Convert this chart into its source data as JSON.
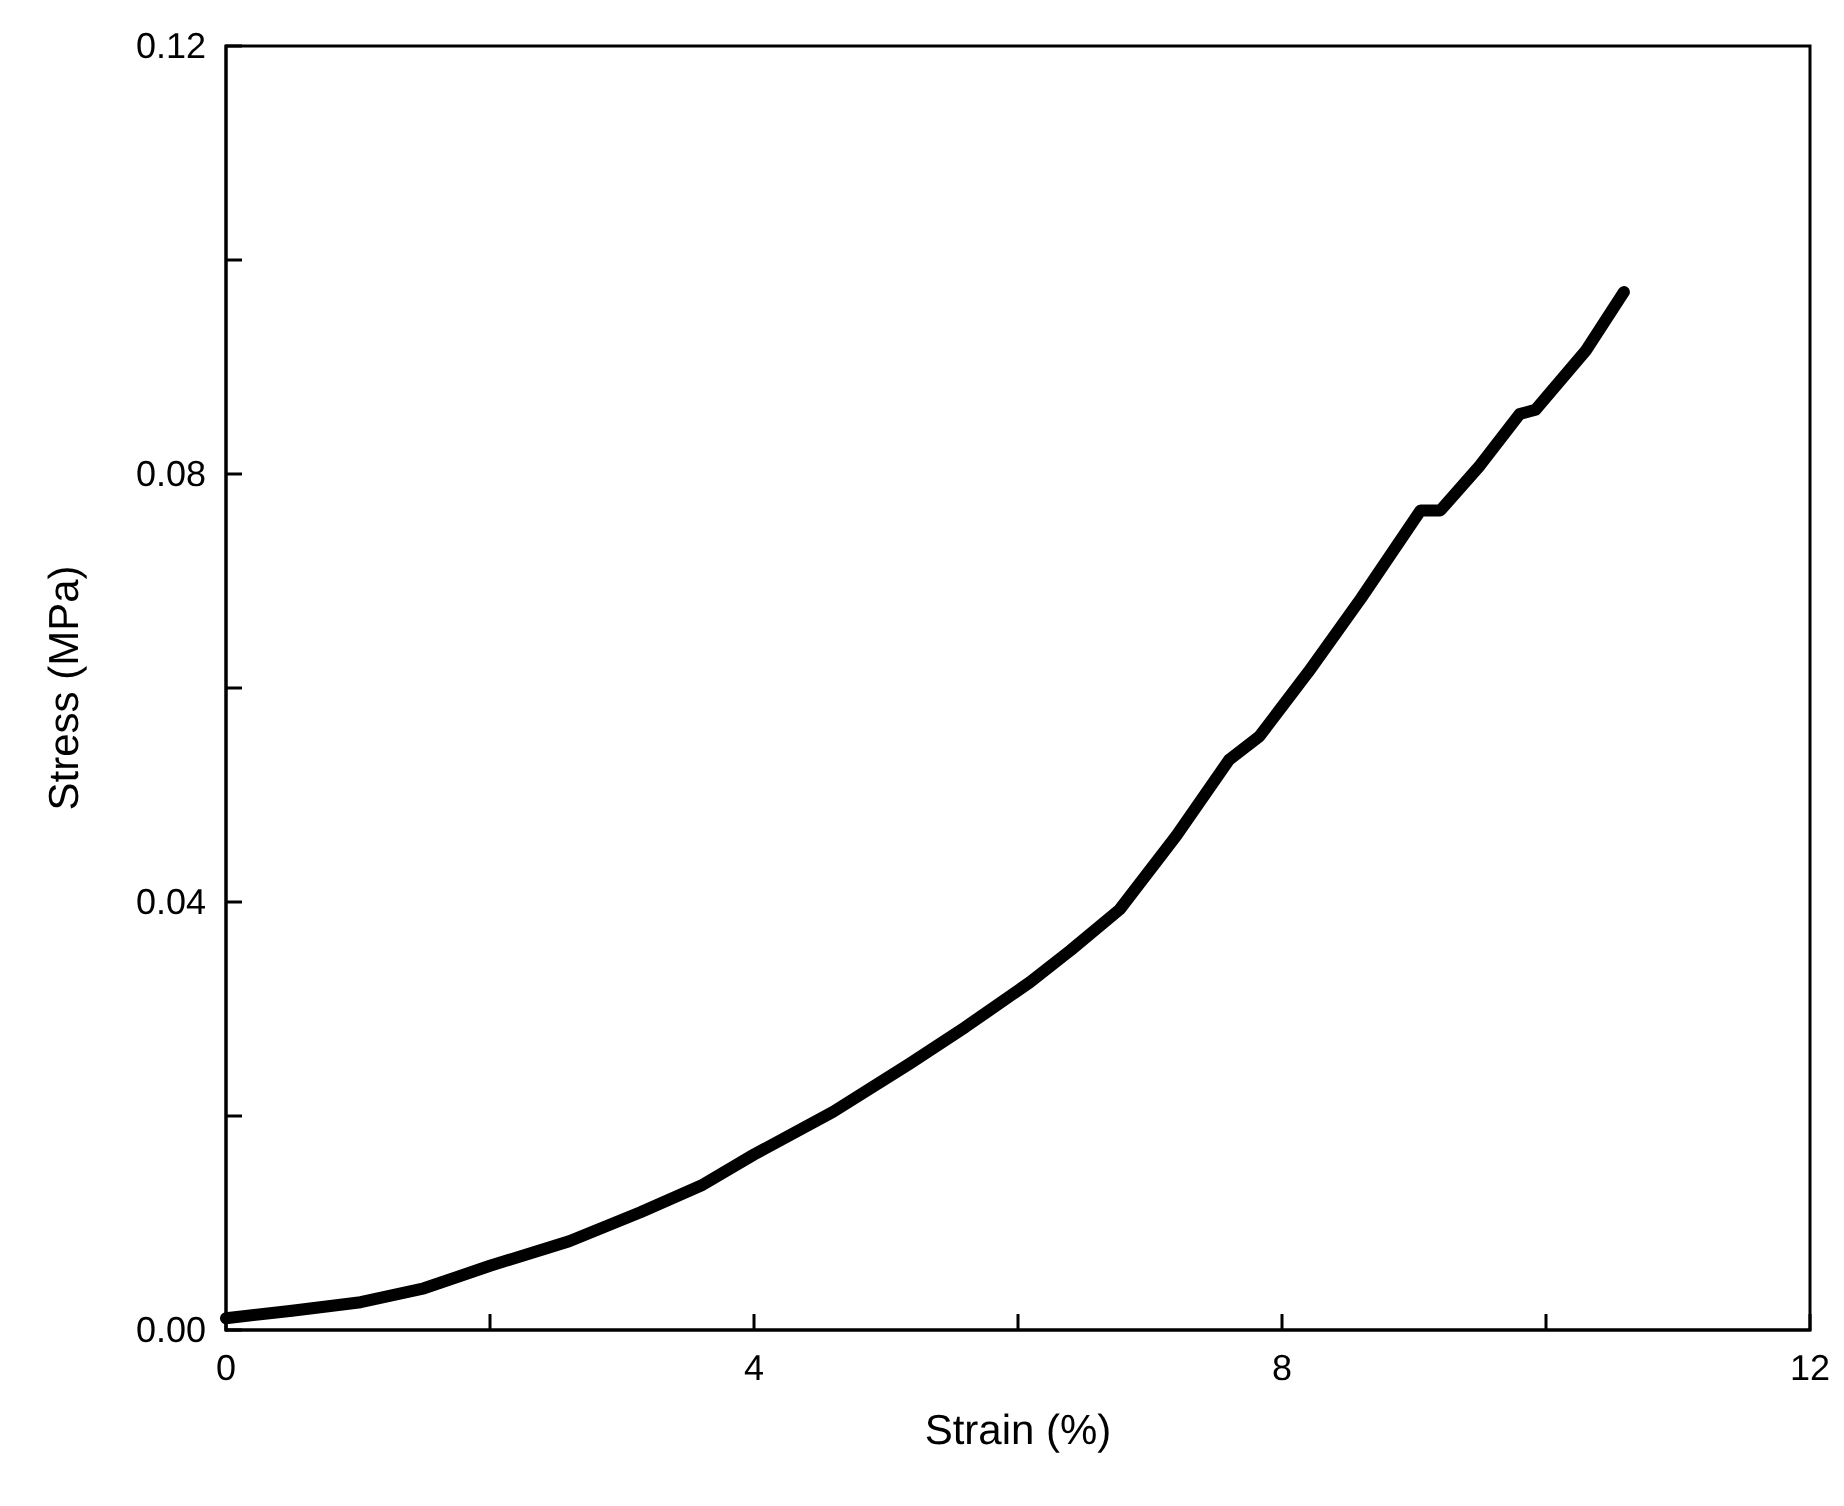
{
  "chart_data": {
    "type": "line",
    "xlabel": "Strain (%)",
    "ylabel": "Stress (MPa)",
    "xlim": [
      0,
      12
    ],
    "xticks": [
      0,
      {
        "value": 2,
        "label": null
      },
      4,
      {
        "value": 6,
        "label": null
      },
      8,
      {
        "value": 10,
        "label": null
      },
      12
    ],
    "ylim": [
      0,
      0.12
    ],
    "yticks": [
      {
        "value": 0,
        "label": "0.00"
      },
      {
        "value": 0.02,
        "label": null
      },
      {
        "value": 0.04,
        "label": "0.04"
      },
      {
        "value": 0.06,
        "label": null
      },
      {
        "value": 0.08,
        "label": "0.08"
      },
      {
        "value": 0.1,
        "label": null
      },
      {
        "value": 0.12,
        "label": "0.12"
      }
    ],
    "grid": false,
    "marker": "none",
    "line_style": "solid",
    "series": [
      {
        "color": "#000000",
        "x": [
          0,
          0.5,
          1.02,
          1.5,
          2,
          2.6,
          3.14,
          3.6,
          4.0,
          4.6,
          5.18,
          5.6,
          6.09,
          6.4,
          6.77,
          7.2,
          7.6,
          7.83,
          8.2,
          8.6,
          9.05,
          9.2,
          9.5,
          9.8,
          9.92,
          10.3,
          10.59
        ],
        "values": [
          0.0011,
          0.0018,
          0.0026,
          0.0039,
          0.006,
          0.0083,
          0.011,
          0.0135,
          0.0164,
          0.0204,
          0.0249,
          0.0283,
          0.0325,
          0.0355,
          0.0393,
          0.0462,
          0.0533,
          0.0555,
          0.0615,
          0.0684,
          0.0766,
          0.0766,
          0.0808,
          0.0856,
          0.086,
          0.0915,
          0.097
        ]
      }
    ]
  }
}
